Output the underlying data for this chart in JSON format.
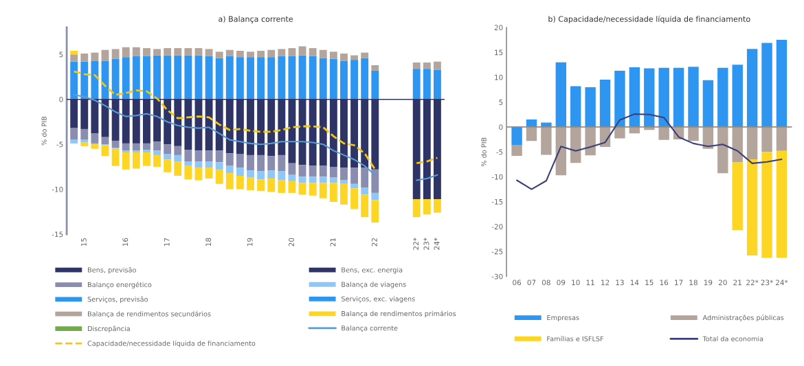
{
  "chart_data": [
    {
      "type": "bar",
      "title": "a) Balança corrente",
      "ylabel": "% do PIB",
      "stacked": true,
      "legend": "bottom",
      "ylim": [
        -15,
        8
      ],
      "yticks": [
        -15,
        -10,
        -5,
        0,
        5
      ],
      "categories": [
        null,
        "15",
        null,
        null,
        null,
        "16",
        null,
        null,
        null,
        "17",
        null,
        null,
        null,
        "18",
        null,
        null,
        null,
        "19",
        null,
        null,
        null,
        "20",
        null,
        null,
        null,
        "21",
        null,
        null,
        null,
        "22",
        null,
        null,
        null,
        "22*",
        "23*",
        "24*"
      ],
      "ref_lines": [
        {
          "axis": "y",
          "value": 0,
          "color": "#2e3466"
        }
      ],
      "series": [
        {
          "name": "Bens, previsão",
          "color": "#2e3466",
          "values": [
            null,
            null,
            null,
            null,
            null,
            null,
            null,
            null,
            null,
            null,
            null,
            null,
            null,
            null,
            null,
            null,
            null,
            null,
            null,
            null,
            null,
            null,
            null,
            null,
            null,
            null,
            null,
            null,
            null,
            null,
            null,
            null,
            null,
            -11.1,
            -11.1,
            -11.1
          ]
        },
        {
          "name": "Bens, exc. energia",
          "color": "#2e3466",
          "values": [
            -3.2,
            -3.3,
            -3.8,
            -4.2,
            -4.6,
            -4.9,
            -4.9,
            -4.9,
            -4.7,
            -5.0,
            -5.2,
            -5.6,
            -5.7,
            -5.7,
            -5.7,
            -6.0,
            -6.1,
            -6.2,
            -6.2,
            -6.3,
            -6.2,
            -7.1,
            -7.3,
            -7.4,
            -7.4,
            -7.5,
            -7.6,
            -7.6,
            -7.6,
            -7.8,
            null,
            null,
            null,
            null,
            null,
            null
          ]
        },
        {
          "name": "Balanço energético",
          "color": "#8a8db0",
          "values": [
            -1.3,
            -1.2,
            -1.1,
            -0.8,
            -0.8,
            -0.8,
            -0.8,
            -0.7,
            -1.0,
            -1.1,
            -1.0,
            -1.3,
            -1.2,
            -1.2,
            -1.3,
            -1.4,
            -1.5,
            -1.7,
            -1.8,
            -1.6,
            -1.8,
            -1.3,
            -1.3,
            -1.2,
            -1.2,
            -1.2,
            -1.4,
            -1.8,
            -2.2,
            -2.6,
            null,
            null,
            null,
            null,
            null,
            null
          ]
        },
        {
          "name": "Balança de viagens",
          "color": "#8fc8f7",
          "values": [
            -0.4,
            -0.3,
            -0.1,
            -0.1,
            -0.1,
            -0.2,
            -0.2,
            -0.3,
            -0.5,
            -0.6,
            -0.7,
            -0.5,
            -0.7,
            -0.7,
            -0.8,
            -0.8,
            -0.9,
            -0.8,
            -0.9,
            -0.9,
            -1.0,
            -0.7,
            -0.7,
            -0.7,
            -0.7,
            -0.6,
            -0.4,
            -0.5,
            -0.8,
            -0.8,
            null,
            null,
            null,
            null,
            null,
            null
          ]
        },
        {
          "name": "Serviços, previsão",
          "color": "#2e96f0",
          "values": [
            null,
            null,
            null,
            null,
            null,
            null,
            null,
            null,
            null,
            null,
            null,
            null,
            null,
            null,
            null,
            null,
            null,
            null,
            null,
            null,
            null,
            null,
            null,
            null,
            null,
            null,
            null,
            null,
            null,
            null,
            null,
            null,
            null,
            3.4,
            3.4,
            3.3
          ]
        },
        {
          "name": "Serviços, exc. viagens",
          "color": "#2e96f0",
          "values": [
            4.2,
            4.2,
            4.3,
            4.3,
            4.5,
            4.7,
            4.8,
            4.8,
            4.9,
            4.9,
            4.9,
            4.9,
            4.9,
            4.8,
            4.6,
            4.8,
            4.7,
            4.7,
            4.7,
            4.7,
            4.8,
            4.8,
            4.9,
            4.8,
            4.6,
            4.5,
            4.3,
            4.4,
            4.6,
            3.2,
            null,
            null,
            null,
            null,
            null,
            null
          ]
        },
        {
          "name": "Balança de rendimentos secundários",
          "color": "#b3a59b",
          "values": [
            0.8,
            0.9,
            0.9,
            1.2,
            1.1,
            1.1,
            1.0,
            0.9,
            0.7,
            0.8,
            0.8,
            0.8,
            0.8,
            0.8,
            0.7,
            0.7,
            0.7,
            0.6,
            0.7,
            0.8,
            0.8,
            0.9,
            1.0,
            0.9,
            0.9,
            0.8,
            0.8,
            0.5,
            0.6,
            0.6,
            null,
            null,
            null,
            0.7,
            0.7,
            0.9
          ]
        },
        {
          "name": "Balança de rendimentos primários",
          "color": "#fdd625",
          "values": [
            0.4,
            -0.4,
            -0.5,
            -1.2,
            -1.9,
            -1.9,
            -1.8,
            -1.5,
            -1.3,
            -1.4,
            -1.6,
            -1.5,
            -1.4,
            -1.2,
            -1.6,
            -1.8,
            -1.5,
            -1.4,
            -1.3,
            -1.5,
            -1.4,
            -1.3,
            -1.3,
            -1.4,
            -1.7,
            -2.1,
            -2.3,
            -2.3,
            -2.5,
            -2.5,
            null,
            null,
            null,
            -2.0,
            -1.7,
            -1.5
          ]
        },
        {
          "name": "Discrepância",
          "color": "#70ad47",
          "values": [
            null,
            null,
            null,
            null,
            null,
            null,
            null,
            null,
            null,
            null,
            null,
            null,
            null,
            null,
            null,
            null,
            null,
            null,
            null,
            null,
            null,
            null,
            null,
            null,
            null,
            null,
            null,
            null,
            null,
            null,
            null,
            null,
            null,
            null,
            null,
            null
          ]
        },
        {
          "name": "Balança corrente",
          "type": "line",
          "color": "#5b9bd5",
          "line_style": "solid",
          "values": [
            0.5,
            0.3,
            -0.1,
            -0.7,
            -1.4,
            -1.9,
            -1.8,
            -1.6,
            -1.9,
            -2.5,
            -2.9,
            -3.1,
            -3.2,
            -3.1,
            -3.8,
            -4.5,
            -4.7,
            -4.9,
            -5.0,
            -4.9,
            -4.7,
            -4.7,
            -4.7,
            -4.8,
            -5.0,
            -5.7,
            -6.2,
            -6.7,
            -7.4,
            -8.4,
            null,
            null,
            null,
            -9.0,
            -8.8,
            -8.4
          ]
        },
        {
          "name": "Capacidade/necessidade líquida de financiamento",
          "type": "line",
          "color": "#f2c811",
          "line_style": "dashed",
          "values": [
            3.1,
            2.8,
            2.7,
            1.5,
            0.5,
            0.7,
            1.0,
            0.9,
            0.1,
            -1.2,
            -2.1,
            -2.0,
            -1.9,
            -2.0,
            -2.8,
            -3.4,
            -3.3,
            -3.5,
            -3.6,
            -3.6,
            -3.4,
            -3.1,
            -3.0,
            -3.0,
            -3.1,
            -4.1,
            -4.9,
            -5.1,
            -6.0,
            -7.8,
            null,
            null,
            null,
            -7.1,
            -6.9,
            -6.5
          ]
        }
      ]
    },
    {
      "type": "bar",
      "title": "b) Capacidade/necessidade líquida de financiamento",
      "ylabel": "% do PIB",
      "stacked": true,
      "legend": "bottom",
      "ylim": [
        -30,
        20
      ],
      "yticks": [
        -30,
        -25,
        -20,
        -15,
        -10,
        -5,
        0,
        5,
        10,
        15,
        20
      ],
      "categories": [
        "06",
        "07",
        "08",
        "09",
        "10",
        "11",
        "12",
        "13",
        "14",
        "15",
        "16",
        "17",
        "18",
        "19",
        "20",
        "21",
        "22*",
        "23*",
        "24*"
      ],
      "ref_lines": [
        {
          "axis": "y",
          "value": 0,
          "color": "#8c8c8c"
        }
      ],
      "series": [
        {
          "name": "Empresas",
          "color": "#2e96f0",
          "values": [
            -3.6,
            1.5,
            0.9,
            13.0,
            8.2,
            8.0,
            9.5,
            11.3,
            12.0,
            11.8,
            11.9,
            11.9,
            12.1,
            9.4,
            11.9,
            12.5,
            15.7,
            16.9,
            17.5
          ]
        },
        {
          "name": "Administrações públicas",
          "color": "#b3a59b",
          "values": [
            -2.2,
            -2.8,
            -5.6,
            -9.7,
            -7.2,
            -5.7,
            -4.0,
            -2.3,
            -1.3,
            -0.6,
            -2.6,
            -2.5,
            -2.8,
            -4.4,
            -9.3,
            -7.1,
            -6.5,
            -5.0,
            -4.8
          ]
        },
        {
          "name": "Famílias e ISFLSF",
          "color": "#fdd625",
          "values": [
            null,
            null,
            null,
            null,
            null,
            null,
            null,
            null,
            null,
            null,
            null,
            null,
            null,
            null,
            null,
            -13.6,
            -19.3,
            -21.3,
            -21.5
          ]
        },
        {
          "name": "Total da economia",
          "type": "line",
          "color": "#3a3f7a",
          "line_style": "solid",
          "values": [
            -10.7,
            -12.5,
            -10.8,
            -3.9,
            -4.8,
            -4.0,
            -3.1,
            1.4,
            2.6,
            2.5,
            1.9,
            -2.0,
            -3.3,
            -3.9,
            -3.5,
            -4.8,
            -7.3,
            -7.0,
            -6.5
          ]
        }
      ]
    }
  ]
}
